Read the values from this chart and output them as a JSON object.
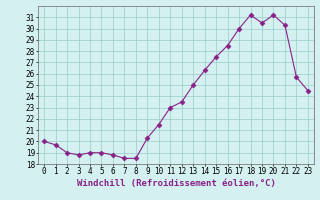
{
  "x": [
    0,
    1,
    2,
    3,
    4,
    5,
    6,
    7,
    8,
    9,
    10,
    11,
    12,
    13,
    14,
    15,
    16,
    17,
    18,
    19,
    20,
    21,
    22,
    23
  ],
  "y": [
    20.0,
    19.7,
    19.0,
    18.8,
    19.0,
    19.0,
    18.8,
    18.5,
    18.5,
    20.3,
    21.5,
    23.0,
    23.5,
    25.0,
    26.3,
    27.5,
    28.5,
    30.0,
    31.2,
    30.5,
    31.2,
    30.3,
    25.7,
    24.5
  ],
  "line_color": "#882288",
  "marker": "D",
  "marker_size": 2.5,
  "bg_color": "#d4f0f0",
  "grid_color": "#99cccc",
  "xlabel": "Windchill (Refroidissement éolien,°C)",
  "xlim": [
    -0.5,
    23.5
  ],
  "ylim": [
    18,
    32
  ],
  "yticks": [
    18,
    19,
    20,
    21,
    22,
    23,
    24,
    25,
    26,
    27,
    28,
    29,
    30,
    31
  ],
  "xticks": [
    0,
    1,
    2,
    3,
    4,
    5,
    6,
    7,
    8,
    9,
    10,
    11,
    12,
    13,
    14,
    15,
    16,
    17,
    18,
    19,
    20,
    21,
    22,
    23
  ],
  "tick_fontsize": 5.5,
  "xlabel_fontsize": 6.5,
  "lw": 0.8
}
